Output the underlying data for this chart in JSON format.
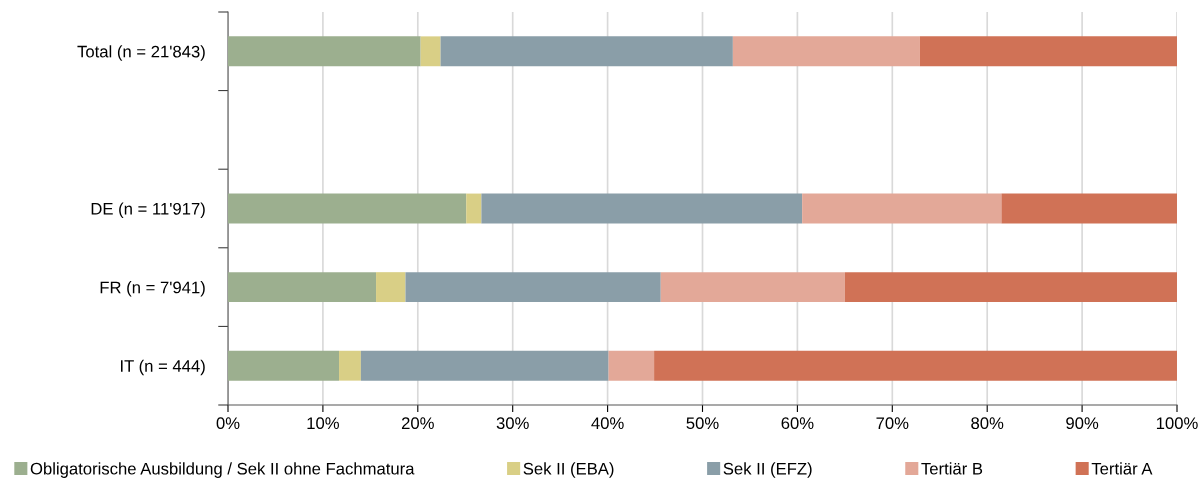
{
  "chart_data": {
    "type": "bar",
    "orientation": "horizontal",
    "stacked": true,
    "categories": [
      "Total (n = 21'843)",
      null,
      "DE (n = 11'917)",
      "FR (n = 7'941)",
      "IT (n = 444)"
    ],
    "series": [
      {
        "name": "Obligatorische Ausbildung / Sek II ohne Fachmatura",
        "color": "#9caf8f",
        "values": [
          20.3,
          null,
          25.1,
          15.6,
          11.7
        ]
      },
      {
        "name": "Sek II (EBA)",
        "color": "#d9cf86",
        "values": [
          2.1,
          null,
          1.6,
          3.1,
          2.3
        ]
      },
      {
        "name": "Sek II (EFZ)",
        "color": "#8a9ea8",
        "values": [
          30.8,
          null,
          33.8,
          26.9,
          26.1
        ]
      },
      {
        "name": "Tertiär B",
        "color": "#e3a898",
        "values": [
          19.7,
          null,
          21.0,
          19.4,
          4.8
        ]
      },
      {
        "name": "Tertiär A",
        "color": "#d07256",
        "values": [
          27.1,
          null,
          18.5,
          35.0,
          55.1
        ]
      }
    ],
    "xlim": [
      0,
      100
    ],
    "xticks": [
      {
        "value": 0,
        "label": "0%"
      },
      {
        "value": 10,
        "label": "10%"
      },
      {
        "value": 20,
        "label": "20%"
      },
      {
        "value": 30,
        "label": "30%"
      },
      {
        "value": 40,
        "label": "40%"
      },
      {
        "value": 50,
        "label": "50%"
      },
      {
        "value": 60,
        "label": "60%"
      },
      {
        "value": 70,
        "label": "70%"
      },
      {
        "value": 80,
        "label": "80%"
      },
      {
        "value": 90,
        "label": "90%"
      },
      {
        "value": 100,
        "label": "100%"
      }
    ],
    "grid": "x",
    "legend": "bottom"
  }
}
